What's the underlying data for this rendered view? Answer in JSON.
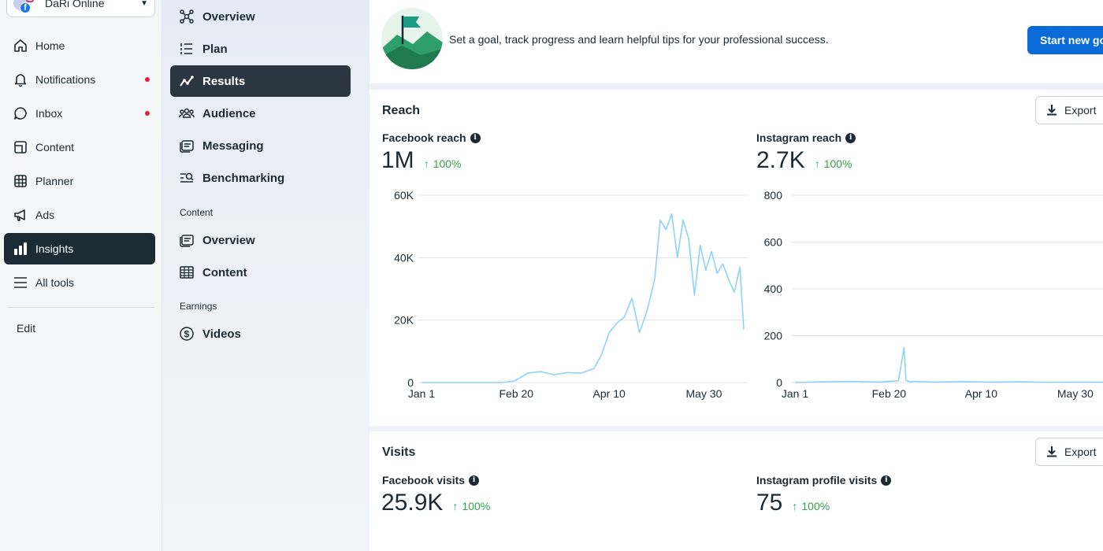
{
  "account": {
    "name": "DaRi Online"
  },
  "left_nav": {
    "items": [
      {
        "label": "Home",
        "icon": "home-icon",
        "notification": false,
        "active": false
      },
      {
        "label": "Notifications",
        "icon": "bell-icon",
        "notification": true,
        "active": false
      },
      {
        "label": "Inbox",
        "icon": "chat-bubble-icon",
        "notification": true,
        "active": false
      },
      {
        "label": "Content",
        "icon": "content-icon",
        "notification": false,
        "active": false
      },
      {
        "label": "Planner",
        "icon": "calendar-grid-icon",
        "notification": false,
        "active": false
      },
      {
        "label": "Ads",
        "icon": "megaphone-icon",
        "notification": false,
        "active": false
      },
      {
        "label": "Insights",
        "icon": "bar-chart-icon",
        "notification": false,
        "active": true
      },
      {
        "label": "All tools",
        "icon": "menu-icon",
        "notification": false,
        "active": false
      }
    ],
    "edit_label": "Edit"
  },
  "sub_nav": {
    "items": [
      {
        "label": "Overview",
        "icon": "network-icon",
        "active": false
      },
      {
        "label": "Plan",
        "icon": "list-icon",
        "active": false
      },
      {
        "label": "Results",
        "icon": "trend-line-icon",
        "active": true
      },
      {
        "label": "Audience",
        "icon": "people-icon",
        "active": false
      },
      {
        "label": "Messaging",
        "icon": "messages-icon",
        "active": false
      },
      {
        "label": "Benchmarking",
        "icon": "benchmark-icon",
        "active": false
      }
    ],
    "content_header": "Content",
    "content_items": [
      {
        "label": "Overview",
        "icon": "messages-icon"
      },
      {
        "label": "Content",
        "icon": "table-icon"
      }
    ],
    "earnings_header": "Earnings",
    "earnings_items": [
      {
        "label": "Videos",
        "icon": "dollar-icon"
      }
    ]
  },
  "goal": {
    "text": "Set a goal, track progress and learn helpful tips for your professional success.",
    "button_label": "Start new go"
  },
  "reach": {
    "title": "Reach",
    "export_label": "Export",
    "facebook": {
      "label": "Facebook reach",
      "value": "1M",
      "change": "100%"
    },
    "instagram": {
      "label": "Instagram reach",
      "value": "2.7K",
      "change": "100%"
    }
  },
  "visits": {
    "title": "Visits",
    "export_label": "Export",
    "facebook": {
      "label": "Facebook visits",
      "value": "25.9K",
      "change": "100%"
    },
    "instagram": {
      "label": "Instagram profile visits",
      "value": "75",
      "change": "100%"
    }
  },
  "colors": {
    "line": "#8ed3f5",
    "accent": "#0a6ad8",
    "positive": "#31a24c",
    "active_nav": "#1c2b33"
  },
  "chart_data": [
    {
      "type": "line",
      "ylim": [
        0,
        60000
      ],
      "yticks": [
        "60K",
        "40K",
        "20K",
        "0"
      ],
      "xticks": [
        "Jan 1",
        "Feb 20",
        "Apr 10",
        "May 30"
      ],
      "series": [
        {
          "x": [
            "Jan 1",
            "Jan 8",
            "Jan 15",
            "Jan 22",
            "Jan 29",
            "Feb 5",
            "Feb 12",
            "Feb 19",
            "Feb 26",
            "Mar 5",
            "Mar 12",
            "Mar 19",
            "Mar 26",
            "Apr 2",
            "Apr 6",
            "Apr 10",
            "Apr 14",
            "Apr 18",
            "Apr 22",
            "Apr 26",
            "Apr 30",
            "May 4",
            "May 7",
            "May 10",
            "May 13",
            "May 16",
            "May 19",
            "May 22",
            "May 25",
            "May 28",
            "May 31",
            "Jun 3",
            "Jun 6",
            "Jun 9",
            "Jun 12",
            "Jun 15",
            "Jun 18",
            "Jun 20"
          ],
          "values": [
            0,
            0,
            0,
            0,
            0,
            0,
            0,
            500,
            3000,
            3500,
            2500,
            3200,
            3000,
            4500,
            9000,
            16000,
            19000,
            21000,
            27000,
            16000,
            23000,
            33000,
            52000,
            49000,
            54000,
            40000,
            52000,
            46000,
            28000,
            44000,
            36000,
            42000,
            35000,
            38000,
            33000,
            29000,
            37000,
            17000
          ]
        }
      ]
    },
    {
      "type": "line",
      "ylim": [
        0,
        800
      ],
      "yticks": [
        "800",
        "600",
        "400",
        "200",
        "0"
      ],
      "xticks": [
        "Jan 1",
        "Feb 20",
        "Apr 10",
        "May 30"
      ],
      "series": [
        {
          "x": [
            "Jan 1",
            "Jan 15",
            "Feb 1",
            "Feb 15",
            "Feb 25",
            "Feb 28",
            "Mar 1",
            "Mar 3",
            "Mar 6",
            "Mar 15",
            "Apr 1",
            "Apr 15",
            "May 1",
            "May 15",
            "Jun 1",
            "Jun 20"
          ],
          "values": [
            0,
            3,
            5,
            2,
            8,
            150,
            10,
            3,
            5,
            2,
            4,
            2,
            3,
            1,
            2,
            1
          ]
        }
      ]
    }
  ]
}
